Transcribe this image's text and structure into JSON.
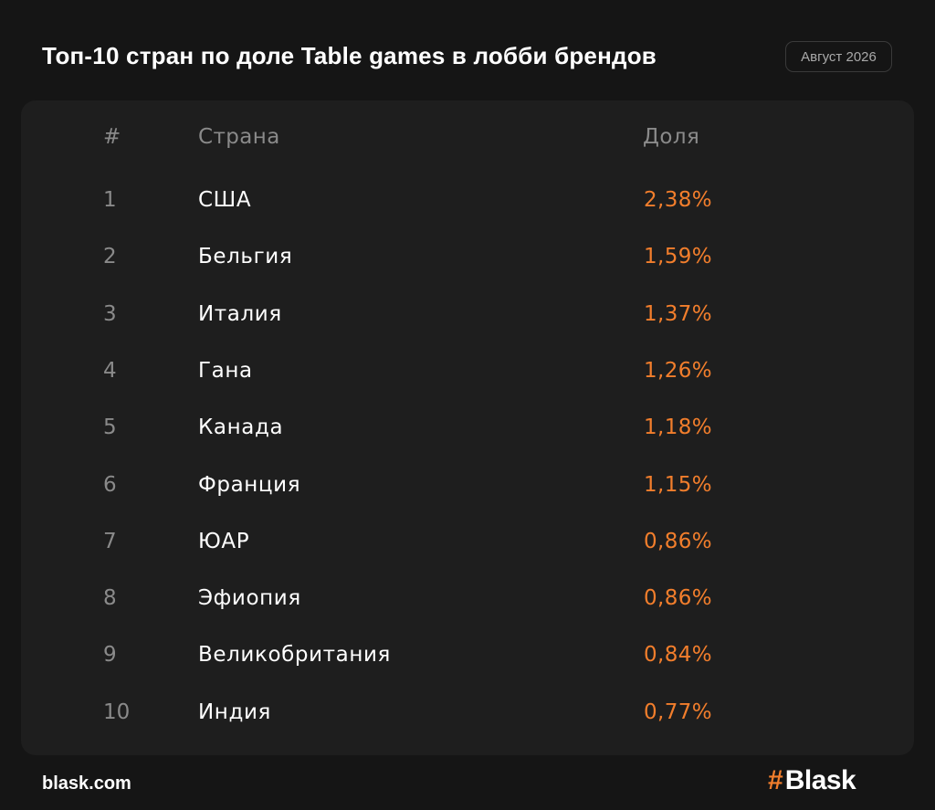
{
  "header": {
    "title": "Топ-10 стран по доле Table games в лобби брендов",
    "date_badge": "Август 2026"
  },
  "chart_data": {
    "type": "table",
    "title": "Топ-10 стран по доле Table games в лобби брендов",
    "columns": [
      "#",
      "Страна",
      "Доля"
    ],
    "rows": [
      {
        "rank": "1",
        "country": "США",
        "share": "2,38%"
      },
      {
        "rank": "2",
        "country": "Бельгия",
        "share": "1,59%"
      },
      {
        "rank": "3",
        "country": "Италия",
        "share": "1,37%"
      },
      {
        "rank": "4",
        "country": "Гана",
        "share": "1,26%"
      },
      {
        "rank": "5",
        "country": "Канада",
        "share": "1,18%"
      },
      {
        "rank": "6",
        "country": "Франция",
        "share": "1,15%"
      },
      {
        "rank": "7",
        "country": "ЮАР",
        "share": "0,86%"
      },
      {
        "rank": "8",
        "country": "Эфиопия",
        "share": "0,86%"
      },
      {
        "rank": "9",
        "country": "Великобритания",
        "share": "0,84%"
      },
      {
        "rank": "10",
        "country": "Индия",
        "share": "0,77%"
      }
    ],
    "share_values": [
      2.38,
      1.59,
      1.37,
      1.26,
      1.18,
      1.15,
      0.86,
      0.86,
      0.84,
      0.77
    ],
    "accent_color": "#f27e2c"
  },
  "footer": {
    "url": "blask.com",
    "brand_hash": "#",
    "brand_name": "Blask"
  },
  "colors": {
    "background": "#151515",
    "panel": "#1e1e1e",
    "accent": "#f27e2c",
    "muted_text": "#8a8a8a"
  }
}
